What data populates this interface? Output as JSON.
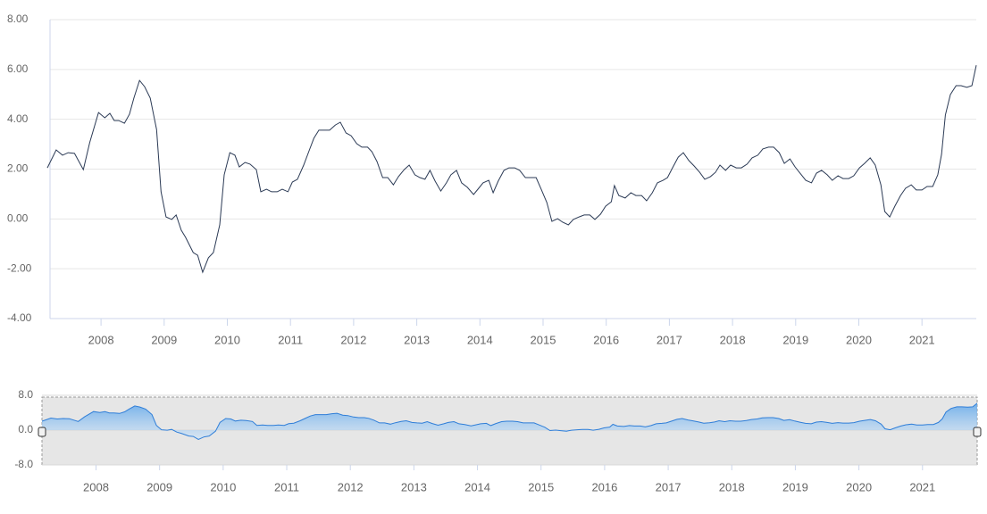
{
  "chart_data": {
    "type": "line",
    "color": "#2b3a55",
    "grid": true,
    "xlim": [
      2007.15,
      2021.86
    ],
    "xticks": [
      2008,
      2009,
      2010,
      2011,
      2012,
      2013,
      2014,
      2015,
      2016,
      2017,
      2018,
      2019,
      2020,
      2021
    ],
    "ylim": [
      -4,
      8
    ],
    "yticks": [
      {
        "value": 8,
        "label": "8.00"
      },
      {
        "value": 6,
        "label": "6.00"
      },
      {
        "value": 4,
        "label": "4.00"
      },
      {
        "value": 2,
        "label": "2.00"
      },
      {
        "value": 0,
        "label": "0.00"
      },
      {
        "value": -2,
        "label": "-2.00"
      },
      {
        "value": -4,
        "label": "-4.00"
      }
    ],
    "x": [
      2007.15,
      2007.29,
      2007.39,
      2007.48,
      2007.58,
      2007.72,
      2007.82,
      2007.96,
      2008.06,
      2008.14,
      2008.21,
      2008.28,
      2008.37,
      2008.45,
      2008.52,
      2008.61,
      2008.69,
      2008.78,
      2008.88,
      2008.95,
      2009.03,
      2009.12,
      2009.19,
      2009.27,
      2009.34,
      2009.46,
      2009.53,
      2009.61,
      2009.7,
      2009.78,
      2009.88,
      2009.95,
      2010.04,
      2010.12,
      2010.19,
      2010.28,
      2010.36,
      2010.46,
      2010.53,
      2010.62,
      2010.7,
      2010.79,
      2010.87,
      2010.96,
      2011.03,
      2011.11,
      2011.21,
      2011.3,
      2011.37,
      2011.45,
      2011.54,
      2011.62,
      2011.71,
      2011.79,
      2011.88,
      2011.96,
      2012.05,
      2012.13,
      2012.22,
      2012.29,
      2012.37,
      2012.46,
      2012.54,
      2012.63,
      2012.71,
      2012.8,
      2012.88,
      2012.97,
      2013.05,
      2013.13,
      2013.21,
      2013.29,
      2013.38,
      2013.47,
      2013.54,
      2013.63,
      2013.71,
      2013.8,
      2013.9,
      2013.98,
      2014.05,
      2014.14,
      2014.21,
      2014.29,
      2014.38,
      2014.46,
      2014.55,
      2014.63,
      2014.72,
      2014.8,
      2014.89,
      2014.97,
      2015.06,
      2015.14,
      2015.23,
      2015.31,
      2015.4,
      2015.48,
      2015.57,
      2015.65,
      2015.74,
      2015.82,
      2015.91,
      2015.99,
      2016.08,
      2016.13,
      2016.2,
      2016.3,
      2016.39,
      2016.47,
      2016.56,
      2016.64,
      2016.73,
      2016.81,
      2016.9,
      2016.97,
      2017.05,
      2017.14,
      2017.22,
      2017.31,
      2017.39,
      2017.48,
      2017.56,
      2017.65,
      2017.73,
      2017.8,
      2017.89,
      2017.97,
      2018.06,
      2018.14,
      2018.23,
      2018.31,
      2018.4,
      2018.48,
      2018.57,
      2018.65,
      2018.74,
      2018.82,
      2018.91,
      2018.99,
      2019.08,
      2019.16,
      2019.25,
      2019.33,
      2019.41,
      2019.5,
      2019.58,
      2019.67,
      2019.75,
      2019.84,
      2019.92,
      2020.01,
      2020.09,
      2020.18,
      2020.26,
      2020.35,
      2020.41,
      2020.49,
      2020.57,
      2020.66,
      2020.74,
      2020.83,
      2020.91,
      2021.0,
      2021.08,
      2021.17,
      2021.25,
      2021.31,
      2021.37,
      2021.45,
      2021.54,
      2021.62,
      2021.71,
      2021.79,
      2021.86
    ],
    "values": [
      2.05,
      2.77,
      2.56,
      2.66,
      2.63,
      1.98,
      3.06,
      4.27,
      4.06,
      4.24,
      3.95,
      3.95,
      3.84,
      4.2,
      4.85,
      5.56,
      5.31,
      4.85,
      3.59,
      1.09,
      0.08,
      -0.02,
      0.16,
      -0.45,
      -0.74,
      -1.35,
      -1.46,
      -2.14,
      -1.56,
      -1.35,
      -0.24,
      1.77,
      2.66,
      2.56,
      2.09,
      2.27,
      2.2,
      1.98,
      1.09,
      1.19,
      1.09,
      1.09,
      1.19,
      1.09,
      1.48,
      1.59,
      2.16,
      2.77,
      3.24,
      3.56,
      3.56,
      3.56,
      3.77,
      3.88,
      3.45,
      3.34,
      3.02,
      2.88,
      2.88,
      2.7,
      2.3,
      1.66,
      1.66,
      1.37,
      1.7,
      1.98,
      2.16,
      1.77,
      1.66,
      1.59,
      1.95,
      1.52,
      1.12,
      1.45,
      1.77,
      1.95,
      1.45,
      1.27,
      0.98,
      1.23,
      1.45,
      1.55,
      1.05,
      1.52,
      1.95,
      2.05,
      2.05,
      1.95,
      1.66,
      1.66,
      1.66,
      1.19,
      0.66,
      -0.1,
      0.01,
      -0.13,
      -0.24,
      -0.02,
      0.08,
      0.16,
      0.16,
      -0.02,
      0.19,
      0.51,
      0.69,
      1.34,
      0.94,
      0.84,
      1.05,
      0.94,
      0.94,
      0.73,
      1.05,
      1.45,
      1.55,
      1.66,
      2.05,
      2.48,
      2.66,
      2.34,
      2.13,
      1.87,
      1.59,
      1.7,
      1.87,
      2.16,
      1.95,
      2.16,
      2.05,
      2.05,
      2.2,
      2.45,
      2.56,
      2.81,
      2.88,
      2.88,
      2.66,
      2.23,
      2.41,
      2.09,
      1.8,
      1.55,
      1.45,
      1.84,
      1.95,
      1.77,
      1.55,
      1.73,
      1.62,
      1.62,
      1.73,
      2.05,
      2.23,
      2.45,
      2.16,
      1.37,
      0.3,
      0.08,
      0.51,
      0.94,
      1.23,
      1.37,
      1.16,
      1.16,
      1.3,
      1.3,
      1.77,
      2.59,
      4.17,
      4.99,
      5.35,
      5.35,
      5.28,
      5.35,
      6.17
    ],
    "navigator": {
      "color": "#2f7ed8",
      "ylim": [
        -8,
        8
      ],
      "yticks": [
        {
          "value": 8,
          "label": "8.0"
        },
        {
          "value": 0,
          "label": "0.0"
        },
        {
          "value": -8,
          "label": "-8.0"
        }
      ],
      "xticks": [
        2008,
        2009,
        2010,
        2011,
        2012,
        2013,
        2014,
        2015,
        2016,
        2017,
        2018,
        2019,
        2020,
        2021
      ]
    }
  }
}
